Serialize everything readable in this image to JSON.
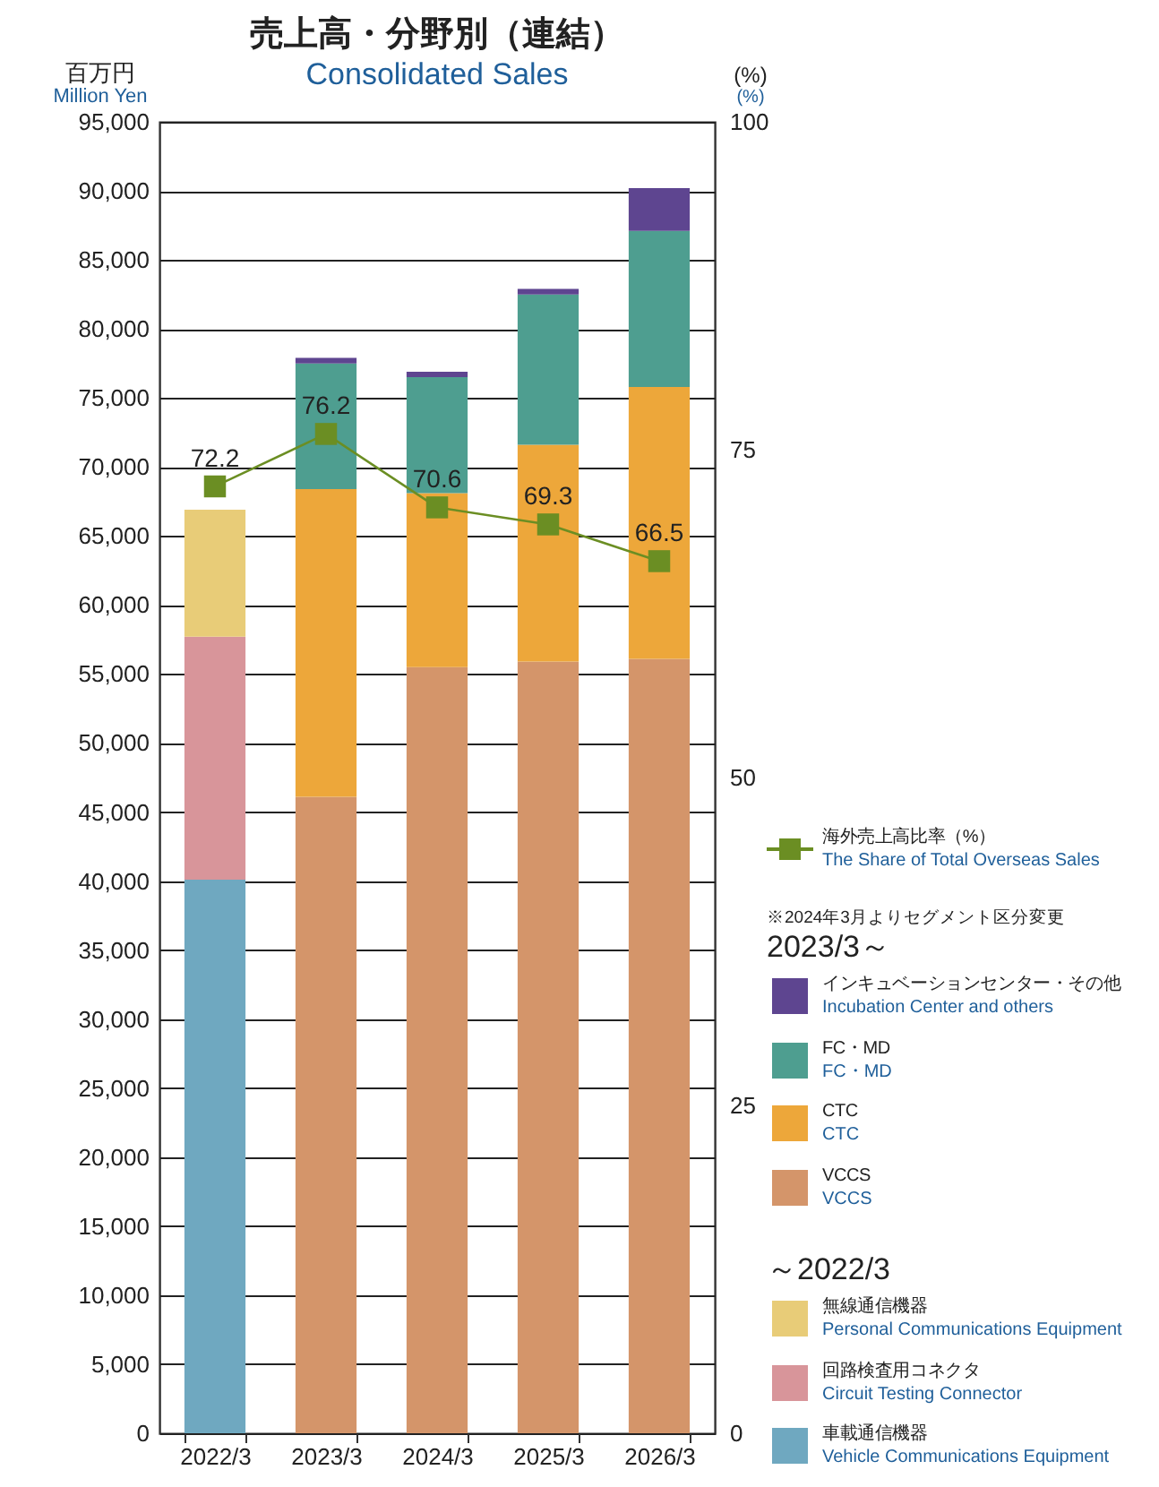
{
  "chart_data": {
    "type": "bar",
    "title": "売上高・分野別（連結）",
    "subtitle": "Consolidated Sales",
    "ylabel": "百万円\nMillion Yen",
    "y2label": "(%)\n(%)",
    "categories": [
      "2022/3",
      "2023/3",
      "2024/3",
      "2025/3",
      "2026/3"
    ],
    "stacked": true,
    "series": [
      {
        "name": "VCCS\nVCCS",
        "color": "#d4956a",
        "values": [
          null,
          46100,
          55500,
          55900,
          56100
        ]
      },
      {
        "name": "CTC\nCTC",
        "color": "#eda73a",
        "values": [
          null,
          22300,
          12600,
          15700,
          19700
        ]
      },
      {
        "name": "FC・MD\nFC・MD",
        "color": "#4e9e90",
        "values": [
          null,
          9100,
          8400,
          10900,
          11300
        ]
      },
      {
        "name": "インキュベーションセンター・その他\nIncubation Center and others",
        "color": "#5e4590",
        "values": [
          null,
          400,
          400,
          400,
          3100
        ]
      },
      {
        "name": "車載通信機器\nVehicle Communications Equipment",
        "color": "#6fa8c0",
        "values": [
          40100,
          null,
          null,
          null,
          null
        ]
      },
      {
        "name": "回路検査用コネクタ\nCircuit Testing Connector",
        "color": "#d8959a",
        "values": [
          17600,
          null,
          null,
          null,
          null
        ]
      },
      {
        "name": "無線通信機器\nPersonal Communications Equipment",
        "color": "#e8cc78",
        "values": [
          9200,
          null,
          null,
          null,
          null
        ]
      },
      {
        "name": "海外売上高比率（%）\nThe Share of Total Overseas Sales",
        "type": "line",
        "axis": "y2",
        "color": "#6b8e23",
        "marker": "square",
        "values": [
          72.2,
          76.2,
          70.6,
          69.3,
          66.5
        ],
        "value_labels": [
          "72.2",
          "76.2",
          "70.6",
          "69.3",
          "66.5"
        ]
      }
    ],
    "ylim": [
      0,
      95000
    ],
    "yticks": [
      {
        "value": 0,
        "label": "0"
      },
      {
        "value": 5000,
        "label": "5,000"
      },
      {
        "value": 10000,
        "label": "10,000"
      },
      {
        "value": 15000,
        "label": "15,000"
      },
      {
        "value": 20000,
        "label": "20,000"
      },
      {
        "value": 25000,
        "label": "25,000"
      },
      {
        "value": 30000,
        "label": "30,000"
      },
      {
        "value": 35000,
        "label": "35,000"
      },
      {
        "value": 40000,
        "label": "40,000"
      },
      {
        "value": 45000,
        "label": "45,000"
      },
      {
        "value": 50000,
        "label": "50,000"
      },
      {
        "value": 55000,
        "label": "55,000"
      },
      {
        "value": 60000,
        "label": "60,000"
      },
      {
        "value": 65000,
        "label": "65,000"
      },
      {
        "value": 70000,
        "label": "70,000"
      },
      {
        "value": 75000,
        "label": "75,000"
      },
      {
        "value": 80000,
        "label": "80,000"
      },
      {
        "value": 85000,
        "label": "85,000"
      },
      {
        "value": 90000,
        "label": "90,000"
      },
      {
        "value": 95000,
        "label": "95,000"
      }
    ],
    "y2lim": [
      0,
      100
    ],
    "y2ticks": [
      0,
      25,
      50,
      75,
      100
    ],
    "grid": "y",
    "legend": "right",
    "annotations": [
      "※2024年3月よりセグメント区分変更",
      "2023/3～",
      "～2022/3"
    ]
  }
}
